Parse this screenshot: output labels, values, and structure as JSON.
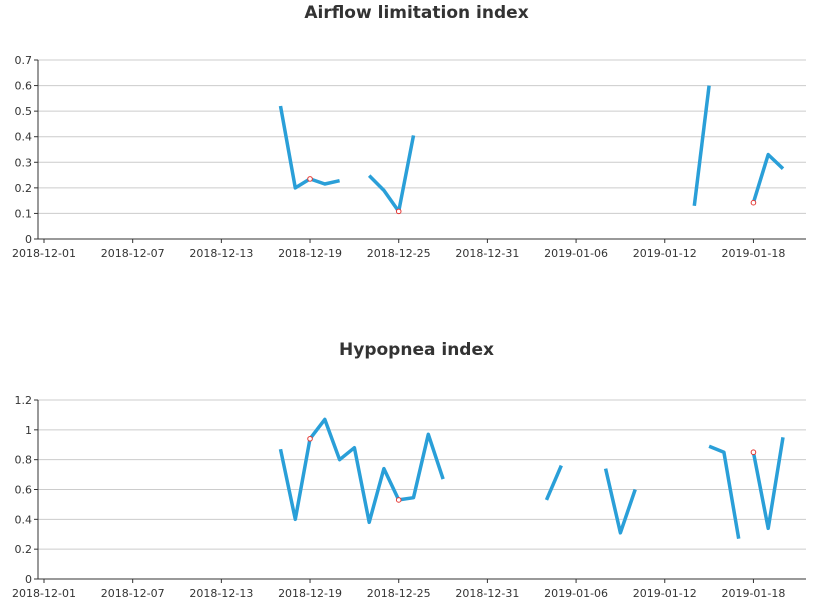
{
  "chart_data": [
    {
      "type": "line",
      "title": "Airflow limitation index",
      "xlabel": "",
      "ylabel": "",
      "ylim": [
        0,
        0.7
      ],
      "yticks": [
        0,
        0.1,
        0.2,
        0.3,
        0.4,
        0.5,
        0.6,
        0.7
      ],
      "ytick_labels": [
        "0",
        "0.1",
        "0.2",
        "0.3",
        "0.4",
        "0.5",
        "0.6",
        "0.7"
      ],
      "xlim": [
        "2018-12-01",
        "2019-01-22"
      ],
      "xtick_labels": [
        "2018-12-01",
        "2018-12-07",
        "2018-12-13",
        "2018-12-19",
        "2018-12-25",
        "2018-12-31",
        "2019-01-06",
        "2019-01-12",
        "2019-01-18"
      ],
      "grid": true,
      "line_color": "#2a9fd8",
      "marker_color": "#e53935",
      "segments": [
        [
          [
            "2018-12-17",
            0.52
          ],
          [
            "2018-12-18",
            0.2
          ],
          [
            "2018-12-19",
            0.235
          ],
          [
            "2018-12-20",
            0.215
          ],
          [
            "2018-12-21",
            0.228
          ]
        ],
        [
          [
            "2018-12-23",
            0.248
          ],
          [
            "2018-12-24",
            0.19
          ],
          [
            "2018-12-25",
            0.108
          ],
          [
            "2018-12-26",
            0.405
          ]
        ],
        [
          [
            "2019-01-14",
            0.13
          ],
          [
            "2019-01-15",
            0.6
          ]
        ],
        [
          [
            "2019-01-18",
            0.142
          ],
          [
            "2019-01-19",
            0.33
          ],
          [
            "2019-01-20",
            0.275
          ]
        ]
      ],
      "markers": [
        [
          "2018-12-19",
          0.235
        ],
        [
          "2018-12-25",
          0.108
        ],
        [
          "2019-01-18",
          0.142
        ]
      ]
    },
    {
      "type": "line",
      "title": "Hypopnea index",
      "xlabel": "",
      "ylabel": "",
      "ylim": [
        0,
        1.2
      ],
      "yticks": [
        0,
        0.2,
        0.4,
        0.6,
        0.8,
        1.0,
        1.2
      ],
      "ytick_labels": [
        "0",
        "0.2",
        "0.4",
        "0.6",
        "0.8",
        "1",
        "1.2"
      ],
      "xlim": [
        "2018-12-01",
        "2019-01-22"
      ],
      "xtick_labels": [
        "2018-12-01",
        "2018-12-07",
        "2018-12-13",
        "2018-12-19",
        "2018-12-25",
        "2018-12-31",
        "2019-01-06",
        "2019-01-12",
        "2019-01-18"
      ],
      "grid": true,
      "line_color": "#2a9fd8",
      "marker_color": "#e53935",
      "segments": [
        [
          [
            "2018-12-17",
            0.87
          ],
          [
            "2018-12-18",
            0.4
          ],
          [
            "2018-12-19",
            0.94
          ],
          [
            "2018-12-20",
            1.07
          ],
          [
            "2018-12-21",
            0.8
          ],
          [
            "2018-12-22",
            0.88
          ],
          [
            "2018-12-23",
            0.38
          ],
          [
            "2018-12-24",
            0.74
          ],
          [
            "2018-12-25",
            0.53
          ],
          [
            "2018-12-26",
            0.545
          ],
          [
            "2018-12-27",
            0.97
          ],
          [
            "2018-12-28",
            0.67
          ]
        ],
        [
          [
            "2019-01-04",
            0.53
          ],
          [
            "2019-01-05",
            0.76
          ]
        ],
        [
          [
            "2019-01-08",
            0.74
          ],
          [
            "2019-01-09",
            0.31
          ],
          [
            "2019-01-10",
            0.6
          ]
        ],
        [
          [
            "2019-01-15",
            0.89
          ],
          [
            "2019-01-16",
            0.85
          ],
          [
            "2019-01-17",
            0.27
          ]
        ],
        [
          [
            "2019-01-18",
            0.85
          ],
          [
            "2019-01-19",
            0.34
          ],
          [
            "2019-01-20",
            0.95
          ]
        ]
      ],
      "markers": [
        [
          "2018-12-19",
          0.94
        ],
        [
          "2018-12-25",
          0.53
        ],
        [
          "2019-01-18",
          0.85
        ]
      ]
    }
  ]
}
